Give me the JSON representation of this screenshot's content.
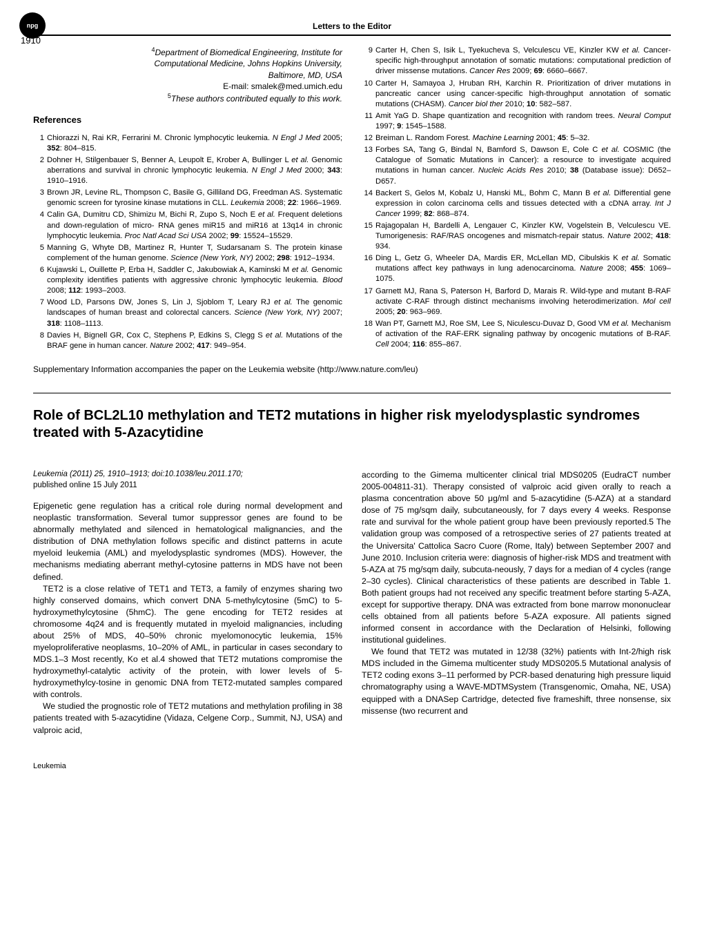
{
  "header": {
    "npg": "npg",
    "page_number": "1910",
    "running_title": "Letters to the Editor"
  },
  "affiliation": {
    "line1_sup": "4",
    "line1": "Department of Biomedical Engineering, Institute for",
    "line2": "Computational Medicine, Johns Hopkins University,",
    "line3": "Baltimore, MD, USA",
    "email_label": "E-mail: ",
    "email": "smalek@med.umich.edu",
    "note_sup": "5",
    "note": "These authors contributed equally to this work."
  },
  "references_heading": "References",
  "refs_left": [
    {
      "authors": "Chiorazzi N, Rai KR, Ferrarini M.",
      "title": "Chronic lymphocytic leukemia.",
      "journal": "N Engl J Med",
      "year": "2005",
      "vol": "352",
      "pages": "804–815"
    },
    {
      "authors": "Dohner H, Stilgenbauer S, Benner A, Leupolt E, Krober A, Bullinger L",
      "etal": true,
      "title": "Genomic aberrations and survival in chronic lymphocytic leukemia.",
      "journal": "N Engl J Med",
      "year": "2000",
      "vol": "343",
      "pages": "1910–1916"
    },
    {
      "authors": "Brown JR, Levine RL, Thompson C, Basile G, Gilliland DG, Freedman AS.",
      "title": "Systematic genomic screen for tyrosine kinase mutations in CLL.",
      "journal": "Leukemia",
      "year": "2008",
      "vol": "22",
      "pages": "1966–1969"
    },
    {
      "authors": "Calin GA, Dumitru CD, Shimizu M, Bichi R, Zupo S, Noch E",
      "etal": true,
      "title": "Frequent deletions and down-regulation of micro- RNA genes miR15 and miR16 at 13q14 in chronic lymphocytic leukemia.",
      "journal": "Proc Natl Acad Sci USA",
      "year": "2002",
      "vol": "99",
      "pages": "15524–15529"
    },
    {
      "authors": "Manning G, Whyte DB, Martinez R, Hunter T, Sudarsanam S.",
      "title": "The protein kinase complement of the human genome.",
      "journal": "Science (New York, NY)",
      "year": "2002",
      "vol": "298",
      "pages": "1912–1934"
    },
    {
      "authors": "Kujawski L, Ouillette P, Erba H, Saddler C, Jakubowiak A, Kaminski M",
      "etal": true,
      "title": "Genomic complexity identifies patients with aggressive chronic lymphocytic leukemia.",
      "journal": "Blood",
      "year": "2008",
      "vol": "112",
      "pages": "1993–2003"
    },
    {
      "authors": "Wood LD, Parsons DW, Jones S, Lin J, Sjoblom T, Leary RJ",
      "etal": true,
      "title": "The genomic landscapes of human breast and colorectal cancers.",
      "journal": "Science (New York, NY)",
      "year": "2007",
      "vol": "318",
      "pages": "1108–1113"
    },
    {
      "authors": "Davies H, Bignell GR, Cox C, Stephens P, Edkins S, Clegg S",
      "etal": true,
      "title": "Mutations of the BRAF gene in human cancer.",
      "journal": "Nature",
      "year": "2002",
      "vol": "417",
      "pages": "949–954"
    }
  ],
  "refs_right": [
    {
      "authors": "Carter H, Chen S, Isik L, Tyekucheva S, Velculescu VE, Kinzler KW",
      "etal": true,
      "title": "Cancer-specific high-throughput annotation of somatic mutations: computational prediction of driver missense mutations.",
      "journal": "Cancer Res",
      "year": "2009",
      "vol": "69",
      "pages": "6660–6667"
    },
    {
      "authors": "Carter H, Samayoa J, Hruban RH, Karchin R.",
      "title": "Prioritization of driver mutations in pancreatic cancer using cancer-specific high-throughput annotation of somatic mutations (CHASM).",
      "journal": "Cancer biol ther",
      "year": "2010",
      "vol": "10",
      "pages": "582–587"
    },
    {
      "authors": "Amit YaG D.",
      "title": "Shape quantization and recognition with random trees.",
      "journal": "Neural Comput",
      "year": "1997",
      "vol": "9",
      "pages": "1545–1588"
    },
    {
      "authors": "Breiman L.",
      "title": "Random Forest.",
      "journal": "Machine Learning",
      "year": "2001",
      "vol": "45",
      "pages": "5–32"
    },
    {
      "authors": "Forbes SA, Tang G, Bindal N, Bamford S, Dawson E, Cole C",
      "etal": true,
      "title": "COSMIC (the Catalogue of Somatic Mutations in Cancer): a resource to investigate acquired mutations in human cancer.",
      "journal": "Nucleic Acids Res",
      "year": "2010",
      "vol": "38",
      "issue": "(Database issue)",
      "pages": "D652–D657"
    },
    {
      "authors": "Backert S, Gelos M, Kobalz U, Hanski ML, Bohm C, Mann B",
      "etal": true,
      "title": "Differential gene expression in colon carcinoma cells and tissues detected with a cDNA array.",
      "journal": "Int J Cancer",
      "year": "1999",
      "vol": "82",
      "pages": "868–874"
    },
    {
      "authors": "Rajagopalan H, Bardelli A, Lengauer C, Kinzler KW, Vogelstein B, Velculescu VE.",
      "title": "Tumorigenesis: RAF/RAS oncogenes and mismatch-repair status.",
      "journal": "Nature",
      "year": "2002",
      "vol": "418",
      "pages": "934"
    },
    {
      "authors": "Ding L, Getz G, Wheeler DA, Mardis ER, McLellan MD, Cibulskis K",
      "etal": true,
      "title": "Somatic mutations affect key pathways in lung adenocarcinoma.",
      "journal": "Nature",
      "year": "2008",
      "vol": "455",
      "pages": "1069–1075"
    },
    {
      "authors": "Garnett MJ, Rana S, Paterson H, Barford D, Marais R.",
      "title": "Wild-type and mutant B-RAF activate C-RAF through distinct mechanisms involving heterodimerization.",
      "journal": "Mol cell",
      "year": "2005",
      "vol": "20",
      "pages": "963–969"
    },
    {
      "authors": "Wan PT, Garnett MJ, Roe SM, Lee S, Niculescu-Duvaz D, Good VM",
      "etal": true,
      "title": "Mechanism of activation of the RAF-ERK signaling pathway by oncogenic mutations of B-RAF.",
      "journal": "Cell",
      "year": "2004",
      "vol": "116",
      "pages": "855–867"
    }
  ],
  "supp_note": "Supplementary Information accompanies the paper on the Leukemia website (http://www.nature.com/leu)",
  "article": {
    "title": "Role of BCL2L10 methylation and TET2 mutations in higher risk myelodysplastic syndromes treated with 5-Azacytidine",
    "pub_line1": "Leukemia (2011) 25, 1910–1913; doi:10.1038/leu.2011.170;",
    "pub_line2": "published online 15 July 2011",
    "left_paras": [
      "Epigenetic gene regulation has a critical role during normal development and neoplastic transformation. Several tumor suppressor genes are found to be abnormally methylated and silenced in hematological malignancies, and the distribution of DNA methylation follows specific and distinct patterns in acute myeloid leukemia (AML) and myelodysplastic syndromes (MDS). However, the mechanisms mediating aberrant methyl-cytosine patterns in MDS have not been defined.",
      "TET2 is a close relative of TET1 and TET3, a family of enzymes sharing two highly conserved domains, which convert DNA 5-methylcytosine (5mC) to 5-hydroxymethylcytosine (5hmC). The gene encoding for TET2 resides at chromosome 4q24 and is frequently mutated in myeloid malignancies, including about 25% of MDS, 40–50% chronic myelomonocytic leukemia, 15% myeloproliferative neoplasms, 10–20% of AML, in particular in cases secondary to MDS.1–3 Most recently, Ko et al.4 showed that TET2 mutations compromise the hydroxymethyl-catalytic activity of the protein, with lower levels of 5-hydroxymethylcy-tosine in genomic DNA from TET2-mutated samples compared with controls.",
      "We studied the prognostic role of TET2 mutations and methylation profiling in 38 patients treated with 5-azacytidine (Vidaza, Celgene Corp., Summit, NJ, USA) and valproic acid,"
    ],
    "right_paras": [
      "according to the Gimema multicenter clinical trial MDS0205 (EudraCT number 2005-004811-31). Therapy consisted of valproic acid given orally to reach a plasma concentration above 50 μg/ml and 5-azacytidine (5-AZA) at a standard dose of 75 mg/sqm daily, subcutaneously, for 7 days every 4 weeks. Response rate and survival for the whole patient group have been previously reported.5 The validation group was composed of a retrospective series of 27 patients treated at the Universita' Cattolica Sacro Cuore (Rome, Italy) between September 2007 and June 2010. Inclusion criteria were: diagnosis of higher-risk MDS and treatment with 5-AZA at 75 mg/sqm daily, subcuta-neously, 7 days for a median of 4 cycles (range 2–30 cycles). Clinical characteristics of these patients are described in Table 1. Both patient groups had not received any specific treatment before starting 5-AZA, except for supportive therapy. DNA was extracted from bone marrow mononuclear cells obtained from all patients before 5-AZA exposure. All patients signed informed consent in accordance with the Declaration of Helsinki, following institutional guidelines.",
      "We found that TET2 was mutated in 12/38 (32%) patients with Int-2/high risk MDS included in the Gimema multicenter study MDS0205.5 Mutational analysis of TET2 coding exons 3–11 performed by PCR-based denaturing high pressure liquid chromatography using a WAVE-MDTMSystem (Transgenomic, Omaha, NE, USA) equipped with a DNASep Cartridge, detected five frameshift, three nonsense, six missense (two recurrent and"
    ]
  },
  "footer": "Leukemia"
}
